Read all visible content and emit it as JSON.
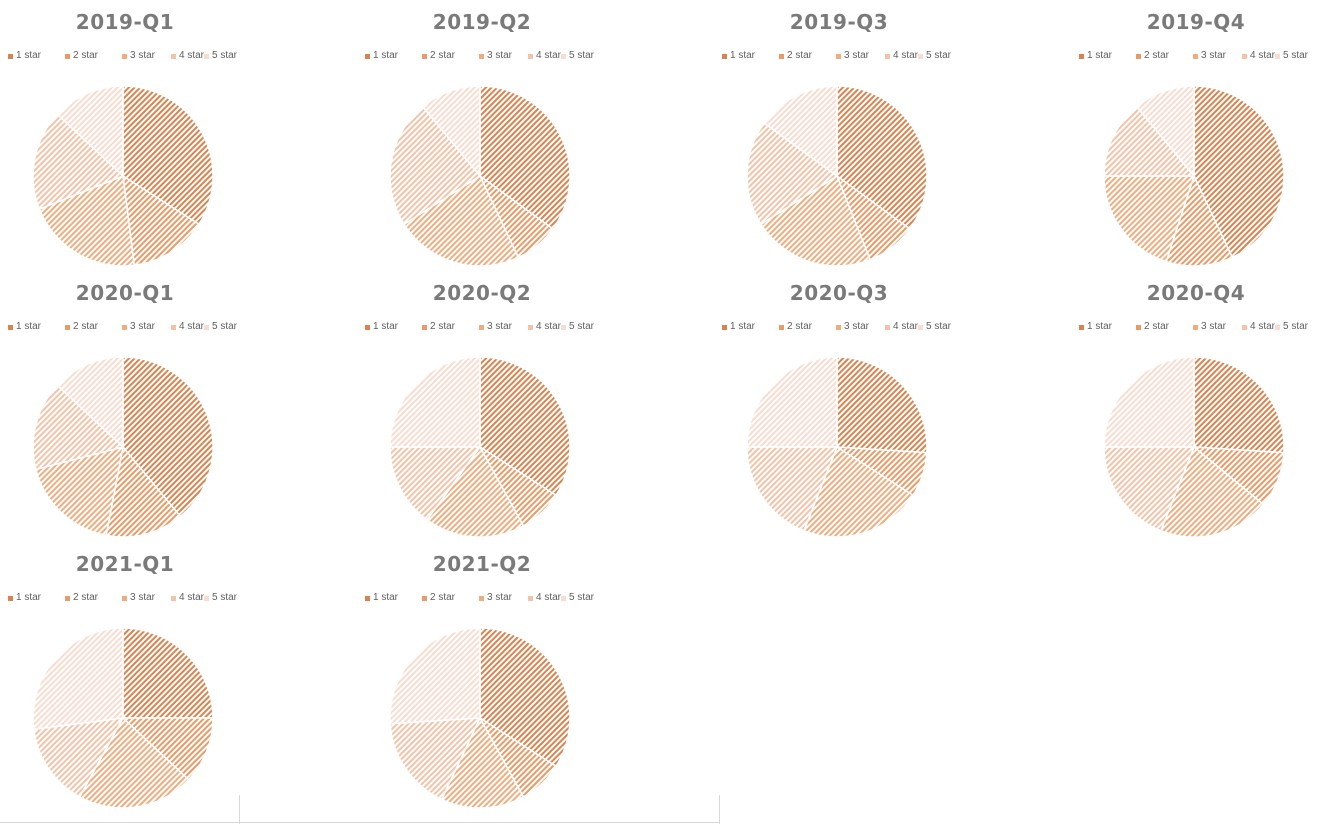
{
  "legend_labels": [
    "1 star",
    "2 star",
    "3 star",
    "4 star",
    "5 star"
  ],
  "colors": {
    "slices": [
      "#d9834f",
      "#e99a66",
      "#efad7f",
      "#f3c3a8",
      "#f8dccf"
    ],
    "slice_border": "#ffffff",
    "title_text": "#7a7a7a",
    "legend_text": "#5f5f5f",
    "frame": "#d9d9d9"
  },
  "chart_data": [
    {
      "type": "pie",
      "title": "2019-Q1",
      "categories": [
        "1 star",
        "2 star",
        "3 star",
        "4 star",
        "5 star"
      ],
      "values": [
        34,
        14,
        21,
        18,
        13
      ]
    },
    {
      "type": "pie",
      "title": "2019-Q2",
      "categories": [
        "1 star",
        "2 star",
        "3 star",
        "4 star",
        "5 star"
      ],
      "values": [
        35,
        8,
        23,
        23,
        11
      ]
    },
    {
      "type": "pie",
      "title": "2019-Q3",
      "categories": [
        "1 star",
        "2 star",
        "3 star",
        "4 star",
        "5 star"
      ],
      "values": [
        35,
        9,
        22,
        19,
        15
      ]
    },
    {
      "type": "pie",
      "title": "2019-Q4",
      "categories": [
        "1 star",
        "2 star",
        "3 star",
        "4 star",
        "5 star"
      ],
      "values": [
        43,
        12,
        20,
        14,
        11
      ]
    },
    {
      "type": "pie",
      "title": "2020-Q1",
      "categories": [
        "1 star",
        "2 star",
        "3 star",
        "4 star",
        "5 star"
      ],
      "values": [
        39,
        14,
        18,
        16,
        13
      ]
    },
    {
      "type": "pie",
      "title": "2020-Q2",
      "categories": [
        "1 star",
        "2 star",
        "3 star",
        "4 star",
        "5 star"
      ],
      "values": [
        34,
        8,
        18,
        15,
        25
      ]
    },
    {
      "type": "pie",
      "title": "2020-Q3",
      "categories": [
        "1 star",
        "2 star",
        "3 star",
        "4 star",
        "5 star"
      ],
      "values": [
        26,
        8,
        22,
        19,
        25
      ]
    },
    {
      "type": "pie",
      "title": "2020-Q4",
      "categories": [
        "1 star",
        "2 star",
        "3 star",
        "4 star",
        "5 star"
      ],
      "values": [
        26,
        10,
        20,
        19,
        25
      ]
    },
    {
      "type": "pie",
      "title": "2021-Q1",
      "categories": [
        "1 star",
        "2 star",
        "3 star",
        "4 star",
        "5 star"
      ],
      "values": [
        25,
        12,
        21,
        15,
        27
      ]
    },
    {
      "type": "pie",
      "title": "2021-Q2",
      "categories": [
        "1 star",
        "2 star",
        "3 star",
        "4 star",
        "5 star"
      ],
      "values": [
        34,
        8,
        15,
        17,
        26
      ]
    }
  ]
}
